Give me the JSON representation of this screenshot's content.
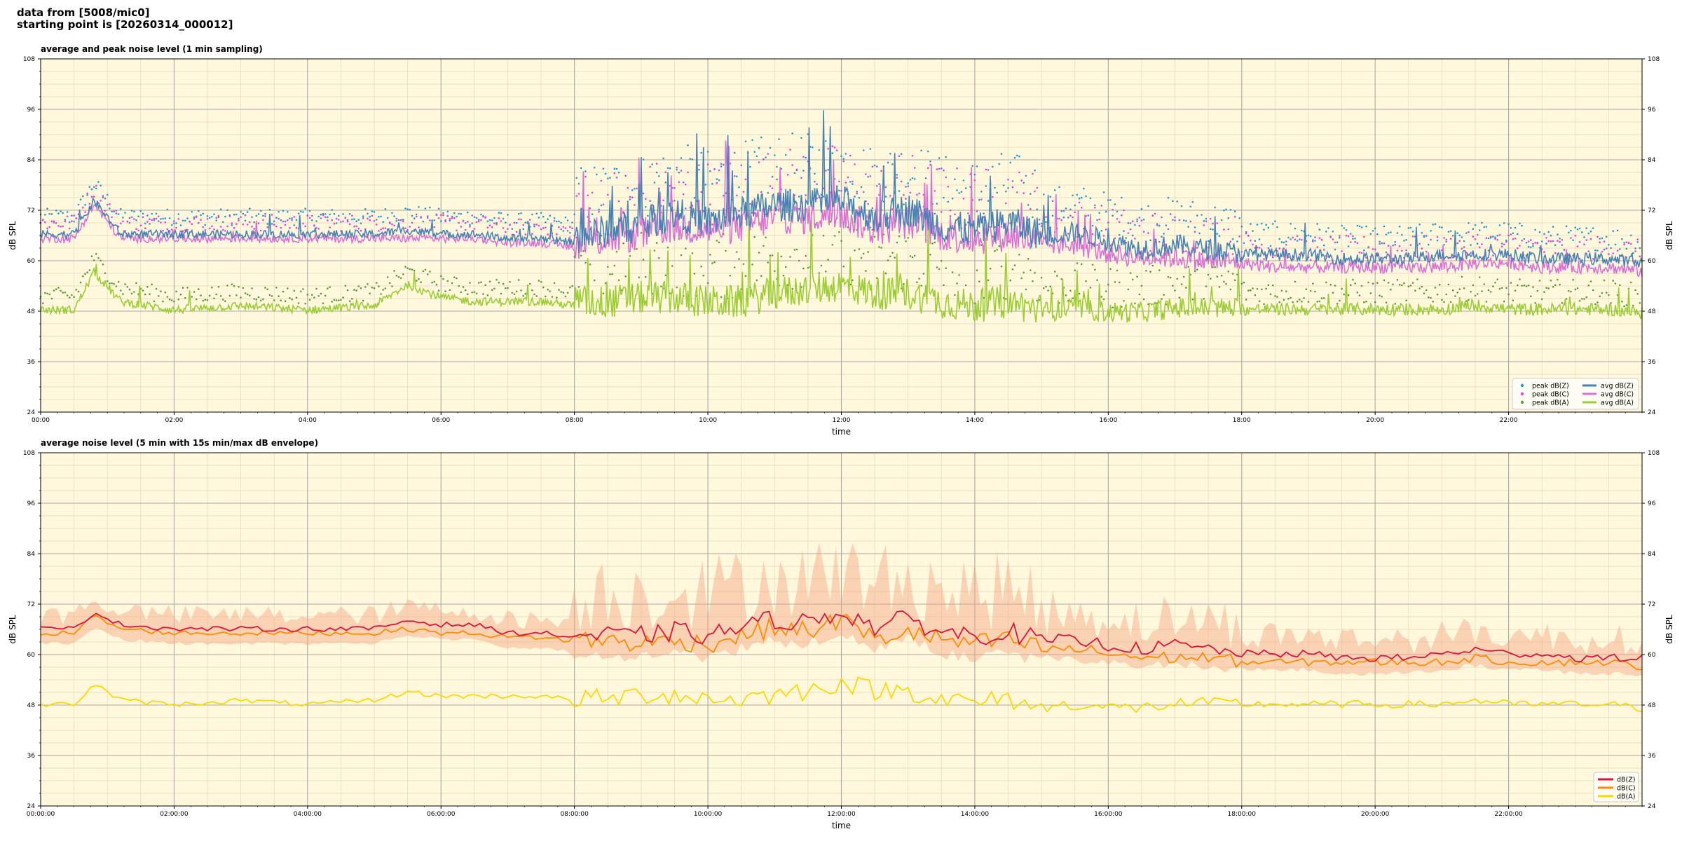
{
  "header": {
    "line1": "data from [5008/mic0]",
    "line2": "starting point is [20260314_000012]"
  },
  "colors": {
    "plot_bg": "#fff8dc",
    "peak_z": "#1f9bd1",
    "peak_c": "#e040e0",
    "peak_a": "#5a9a3a",
    "avg_z": "#4682b4",
    "avg_c": "#da70d6",
    "avg_a": "#9acd32",
    "z": "#dc143c",
    "c": "#ff8c00",
    "a": "#ffd700",
    "envelope": "#f4a582"
  },
  "chart_data": [
    {
      "type": "line",
      "title": "average and peak noise level (1 min sampling)",
      "xlabel": "time",
      "ylabel": "dB SPL",
      "ylim": [
        24,
        108
      ],
      "yticks": [
        24,
        36,
        48,
        60,
        72,
        84,
        96,
        108
      ],
      "xlim_hours": [
        0,
        24
      ],
      "xticks": [
        "00:00",
        "02:00",
        "04:00",
        "06:00",
        "08:00",
        "10:00",
        "12:00",
        "14:00",
        "16:00",
        "18:00",
        "20:00",
        "22:00"
      ],
      "grid": true,
      "legend": "bottom-right",
      "legend_entries": [
        "peak dB(Z)",
        "peak dB(C)",
        "peak dB(A)",
        "avg dB(Z)",
        "avg dB(C)",
        "avg dB(A)"
      ],
      "series": [
        {
          "name": "avg dB(Z)",
          "x_hours": [
            0,
            0.5,
            0.8,
            1.2,
            2,
            3,
            4,
            5,
            5.5,
            6,
            6.5,
            7,
            7.5,
            8,
            8.5,
            9,
            9.5,
            10,
            10.5,
            11,
            11.5,
            12,
            12.5,
            13,
            13.5,
            14,
            14.5,
            15,
            15.5,
            16,
            16.5,
            17,
            17.5,
            18,
            18.5,
            19,
            19.5,
            20,
            20.5,
            21,
            21.5,
            22,
            22.5,
            23,
            23.5,
            24
          ],
          "values": [
            66,
            66,
            74,
            66,
            66,
            66,
            66,
            66,
            67,
            66,
            66,
            65,
            65,
            64,
            66,
            67,
            70,
            68,
            70,
            72,
            72,
            73,
            69,
            71,
            67,
            66,
            68,
            65,
            66,
            64,
            62,
            63,
            62,
            61,
            61,
            61,
            60,
            60,
            60,
            61,
            61,
            61,
            60,
            60,
            60,
            59
          ]
        },
        {
          "name": "avg dB(C)",
          "x_hours": [
            0,
            0.5,
            0.8,
            1.2,
            2,
            3,
            4,
            5,
            5.5,
            6,
            6.5,
            7,
            7.5,
            8,
            8.5,
            9,
            9.5,
            10,
            10.5,
            11,
            11.5,
            12,
            12.5,
            13,
            13.5,
            14,
            14.5,
            15,
            15.5,
            16,
            16.5,
            17,
            17.5,
            18,
            18.5,
            19,
            19.5,
            20,
            20.5,
            21,
            21.5,
            22,
            22.5,
            23,
            23.5,
            24
          ],
          "values": [
            65,
            65,
            73,
            65,
            65,
            65,
            65,
            65,
            65,
            65,
            65,
            64,
            64,
            63,
            64,
            65,
            67,
            66,
            67,
            69,
            69,
            70,
            66,
            68,
            65,
            64,
            65,
            63,
            63,
            61,
            60,
            60,
            59,
            59,
            58,
            58,
            58,
            58,
            58,
            58,
            59,
            59,
            58,
            58,
            58,
            57
          ]
        },
        {
          "name": "avg dB(A)",
          "x_hours": [
            0,
            0.5,
            0.8,
            1.2,
            2,
            3,
            4,
            5,
            5.5,
            6,
            6.5,
            7,
            7.5,
            8,
            8.5,
            9,
            9.5,
            10,
            10.5,
            11,
            11.5,
            12,
            12.5,
            13,
            13.5,
            14,
            14.5,
            15,
            15.5,
            16,
            16.5,
            17,
            17.5,
            18,
            18.5,
            19,
            19.5,
            20,
            20.5,
            21,
            21.5,
            22,
            22.5,
            23,
            23.5,
            24
          ],
          "values": [
            48,
            48,
            57,
            50,
            48,
            49,
            48,
            49,
            54,
            51,
            50,
            50,
            50,
            49,
            49,
            50,
            50,
            49,
            49,
            51,
            52,
            53,
            51,
            51,
            49,
            48,
            49,
            47,
            48,
            47,
            47,
            48,
            48,
            48,
            48,
            48,
            48,
            48,
            48,
            48,
            49,
            48,
            48,
            48,
            48,
            47
          ]
        }
      ]
    },
    {
      "type": "line",
      "title": "average noise level (5 min with 15s min/max dB envelope)",
      "xlabel": "time",
      "ylabel": "dB SPL",
      "ylim": [
        24,
        108
      ],
      "yticks": [
        24,
        36,
        48,
        60,
        72,
        84,
        96,
        108
      ],
      "xlim_hours": [
        0,
        24
      ],
      "xticks": [
        "00:00:00",
        "02:00:00",
        "04:00:00",
        "06:00:00",
        "08:00:00",
        "10:00:00",
        "12:00:00",
        "14:00:00",
        "16:00:00",
        "18:00:00",
        "20:00:00",
        "22:00:00"
      ],
      "grid": true,
      "legend": "bottom-right",
      "legend_entries": [
        "dB(Z)",
        "dB(C)",
        "dB(A)"
      ],
      "series": [
        {
          "name": "dB(Z)",
          "x_hours": [
            0,
            0.5,
            0.8,
            1.2,
            2,
            3,
            4,
            5,
            5.5,
            6,
            6.5,
            7,
            7.5,
            8,
            8.5,
            9,
            9.5,
            10,
            10.5,
            11,
            11.5,
            12,
            12.5,
            13,
            13.5,
            14,
            14.5,
            15,
            15.5,
            16,
            16.5,
            17,
            17.5,
            18,
            18.5,
            19,
            19.5,
            20,
            20.5,
            21,
            21.5,
            22,
            22.5,
            23,
            23.5,
            24
          ],
          "values": [
            66,
            66,
            70,
            67,
            66,
            66,
            66,
            66,
            68,
            67,
            67,
            65,
            65,
            64,
            64,
            64,
            65,
            64,
            66,
            68,
            67,
            70,
            66,
            68,
            65,
            64,
            65,
            63,
            63,
            62,
            61,
            62,
            61,
            60,
            60,
            60,
            59,
            59,
            59,
            60,
            61,
            60,
            60,
            59,
            59,
            59
          ]
        },
        {
          "name": "dB(C)",
          "x_hours": [
            0,
            0.5,
            0.8,
            1.2,
            2,
            3,
            4,
            5,
            5.5,
            6,
            6.5,
            7,
            7.5,
            8,
            8.5,
            9,
            9.5,
            10,
            10.5,
            11,
            11.5,
            12,
            12.5,
            13,
            13.5,
            14,
            14.5,
            15,
            15.5,
            16,
            16.5,
            17,
            17.5,
            18,
            18.5,
            19,
            19.5,
            20,
            20.5,
            21,
            21.5,
            22,
            22.5,
            23,
            23.5,
            24
          ],
          "values": [
            65,
            65,
            69,
            66,
            65,
            65,
            65,
            65,
            66,
            65,
            65,
            64,
            64,
            63,
            63,
            62,
            63,
            62,
            64,
            66,
            65,
            68,
            63,
            65,
            63,
            62,
            63,
            61,
            61,
            60,
            59,
            59,
            59,
            58,
            58,
            58,
            58,
            58,
            58,
            58,
            59,
            58,
            58,
            58,
            58,
            57
          ]
        },
        {
          "name": "dB(A)",
          "x_hours": [
            0,
            0.5,
            0.8,
            1.2,
            2,
            3,
            4,
            5,
            5.5,
            6,
            6.5,
            7,
            7.5,
            8,
            8.5,
            9,
            9.5,
            10,
            10.5,
            11,
            11.5,
            12,
            12.5,
            13,
            13.5,
            14,
            14.5,
            15,
            15.5,
            16,
            16.5,
            17,
            17.5,
            18,
            18.5,
            19,
            19.5,
            20,
            20.5,
            21,
            21.5,
            22,
            22.5,
            23,
            23.5,
            24
          ],
          "values": [
            48,
            48,
            53,
            49,
            48,
            49,
            48,
            49,
            51,
            50,
            50,
            50,
            50,
            49,
            49,
            50,
            50,
            49,
            49,
            50,
            51,
            53,
            51,
            51,
            49,
            48,
            49,
            47,
            48,
            47,
            47,
            48,
            48,
            48,
            48,
            48,
            48,
            48,
            48,
            48,
            49,
            48,
            48,
            48,
            48,
            47
          ]
        }
      ]
    }
  ]
}
